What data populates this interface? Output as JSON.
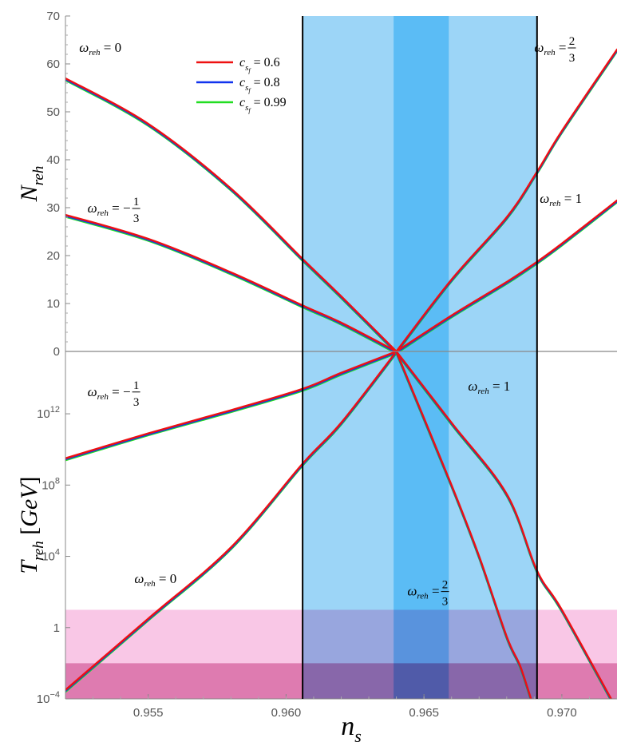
{
  "chart_data": {
    "type": "line",
    "xlabel": "n",
    "xlabel_sub": "s",
    "xlim": [
      0.952,
      0.972
    ],
    "x_ticks": [
      {
        "value": 0.955,
        "label": "0.955"
      },
      {
        "value": 0.96,
        "label": "0.960"
      },
      {
        "value": 0.965,
        "label": "0.965"
      },
      {
        "value": 0.97,
        "label": "0.970"
      }
    ],
    "grid": false,
    "legend_position": "top-left",
    "legend": [
      {
        "sym": "c",
        "sub": "s",
        "subsub": "f",
        "eq": "= 0.6",
        "color": "#ee1111"
      },
      {
        "sym": "c",
        "sub": "s",
        "subsub": "f",
        "eq": "= 0.8",
        "color": "#1133ee"
      },
      {
        "sym": "c",
        "sub": "s",
        "subsub": "f",
        "eq": "= 0.99",
        "color": "#22dd22"
      }
    ],
    "colors": {
      "planck_2sigma": "#9cd5f7",
      "planck_1sigma": "#5bbcf5",
      "pink_region": "#f9c7e6",
      "dark_pink_region": "#df8db9",
      "border": "#000000"
    },
    "bands": [
      {
        "name": "outer",
        "x": [
          0.9606,
          0.9691
        ]
      },
      {
        "name": "inner",
        "x": [
          0.9639,
          0.9659
        ]
      }
    ],
    "pivot_ns": 0.964,
    "top_panel": {
      "ylabel": "N",
      "ylabel_sub": "reh",
      "ylim": [
        0,
        70
      ],
      "y_ticks": [
        {
          "value": 0,
          "label": "0"
        },
        {
          "value": 10,
          "label": "10"
        },
        {
          "value": 20,
          "label": "20"
        },
        {
          "value": 30,
          "label": "30"
        },
        {
          "value": 40,
          "label": "40"
        },
        {
          "value": 50,
          "label": "50"
        },
        {
          "value": 60,
          "label": "60"
        },
        {
          "value": 70,
          "label": "70"
        }
      ],
      "series": [
        {
          "w": "0",
          "x": [
            0.952,
            0.955,
            0.958,
            0.9606,
            0.962,
            0.964
          ],
          "y": [
            57,
            47.5,
            34,
            19.3,
            11.5,
            0
          ]
        },
        {
          "w": "-1/3",
          "x": [
            0.952,
            0.955,
            0.958,
            0.9606,
            0.962,
            0.964
          ],
          "y": [
            28.5,
            23.5,
            16.5,
            9.6,
            6,
            0
          ]
        },
        {
          "w": "2/3",
          "x": [
            0.964,
            0.966,
            0.968,
            0.9691,
            0.97,
            0.972
          ],
          "y": [
            0,
            15,
            28,
            37.5,
            46,
            63
          ]
        },
        {
          "w": "1",
          "x": [
            0.964,
            0.966,
            0.968,
            0.9691,
            0.97,
            0.972
          ],
          "y": [
            0,
            7.5,
            14.5,
            18.7,
            22.5,
            31.5
          ]
        }
      ],
      "labels": [
        {
          "w_num": "0",
          "w_den": "",
          "neg": false,
          "x": 0.9525,
          "y": 62.5
        },
        {
          "w_num": "1",
          "w_den": "3",
          "neg": true,
          "x": 0.9528,
          "y": 29
        },
        {
          "w_num": "2",
          "w_den": "3",
          "neg": false,
          "x": 0.969,
          "y": 62.5
        },
        {
          "w_num": "1",
          "w_den": "",
          "neg": false,
          "x": 0.9692,
          "y": 31
        }
      ]
    },
    "bottom_panel": {
      "ylabel": "T",
      "ylabel_sub": "reh",
      "ylabel_unit": "GeV",
      "yscale": "log",
      "ylim_log10": [
        -4,
        15.5
      ],
      "y_ticks": [
        {
          "log": -4,
          "base": "10",
          "exp": "−4"
        },
        {
          "log": 0,
          "base": "1",
          "exp": ""
        },
        {
          "log": 4,
          "base": "10",
          "exp": "4"
        },
        {
          "log": 8,
          "base": "10",
          "exp": "8"
        },
        {
          "log": 12,
          "base": "10",
          "exp": "12"
        }
      ],
      "regions_log10": {
        "pink": [
          -4,
          1
        ],
        "dark_pink": [
          -4,
          -2
        ]
      },
      "series": [
        {
          "w": "-1/3",
          "x": [
            0.952,
            0.955,
            0.958,
            0.9606,
            0.962,
            0.964
          ],
          "logy": [
            9.5,
            10.9,
            12.2,
            13.4,
            14.3,
            15.5
          ]
        },
        {
          "w": "0",
          "x": [
            0.952,
            0.955,
            0.958,
            0.9606,
            0.962,
            0.964
          ],
          "logy": [
            -3.5,
            0.5,
            4.5,
            9.2,
            11.5,
            15.5
          ]
        },
        {
          "w": "1",
          "x": [
            0.964,
            0.966,
            0.968,
            0.9691,
            0.97,
            0.972
          ],
          "logy": [
            15.5,
            11.5,
            7.5,
            3.2,
            1,
            -4.6
          ]
        },
        {
          "w": "2/3",
          "x": [
            0.964,
            0.966,
            0.967,
            0.968,
            0.9685,
            0.969
          ],
          "logy": [
            15.5,
            8,
            4,
            -0.5,
            -2.2,
            -4.6
          ]
        }
      ],
      "labels": [
        {
          "w_num": "1",
          "w_den": "3",
          "neg": true,
          "x": 0.9528,
          "y": 13.0
        },
        {
          "w_num": "1",
          "w_den": "",
          "neg": false,
          "x": 0.9666,
          "y": 13.3
        },
        {
          "w_num": "0",
          "w_den": "",
          "neg": false,
          "x": 0.9545,
          "y": 2.5
        },
        {
          "w_num": "2",
          "w_den": "3",
          "neg": false,
          "x": 0.9644,
          "y": 1.8
        }
      ]
    }
  }
}
